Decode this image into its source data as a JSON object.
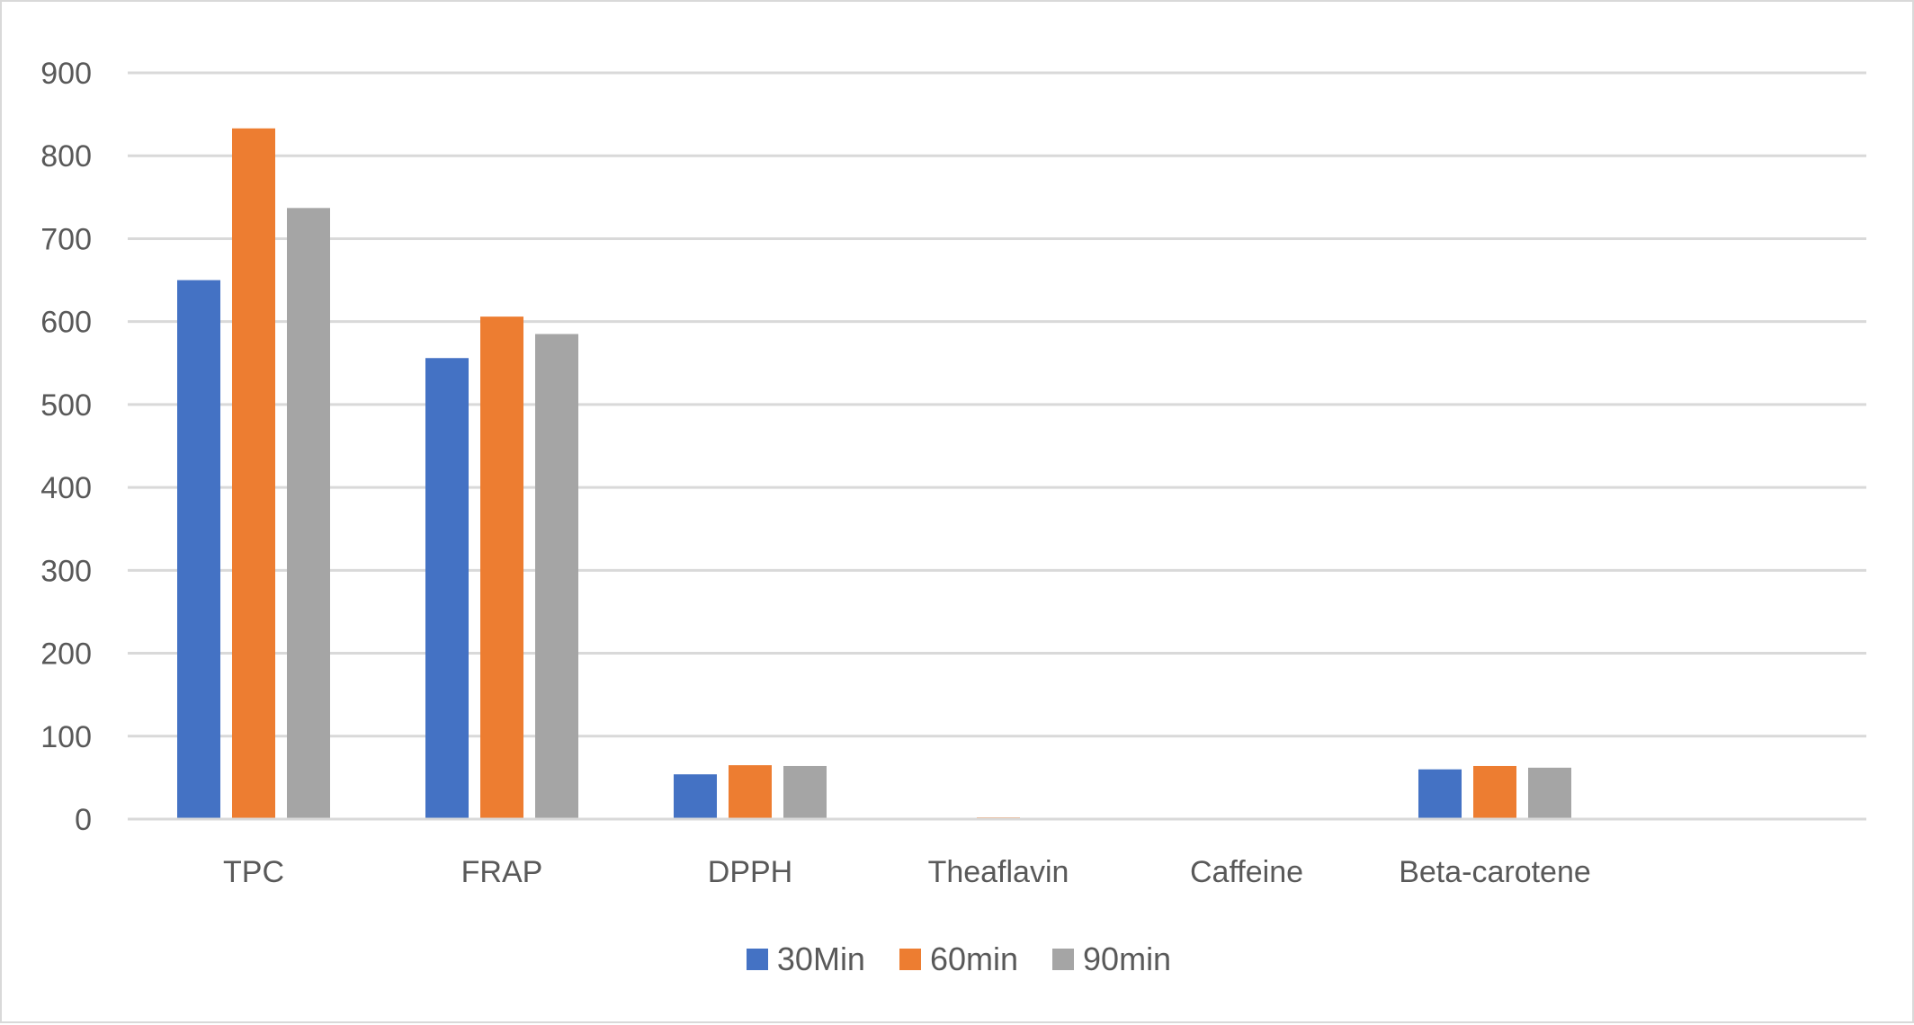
{
  "chart_data": {
    "type": "bar",
    "title": "",
    "xlabel": "",
    "ylabel": "",
    "categories": [
      "TPC",
      "FRAP",
      "DPPH",
      "Theaflavin",
      "Caffeine",
      "Beta-carotene"
    ],
    "series": [
      {
        "name": "30Min",
        "color": "#4472C4",
        "values": [
          650,
          556,
          54,
          0.5,
          0.3,
          60
        ]
      },
      {
        "name": "60min",
        "color": "#ED7D31",
        "values": [
          833,
          606,
          65,
          2,
          0.4,
          64
        ]
      },
      {
        "name": "90min",
        "color": "#A5A5A5",
        "values": [
          737,
          585,
          64,
          0.6,
          0.3,
          62
        ]
      }
    ],
    "ylim": [
      0,
      900
    ],
    "yticks": [
      "0",
      "100",
      "200",
      "300",
      "400",
      "500",
      "600",
      "700",
      "800",
      "900"
    ],
    "grid": true,
    "legend_position": "bottom",
    "gridline_color": "#D9D9D9",
    "axis_color": "#D9D9D9"
  }
}
